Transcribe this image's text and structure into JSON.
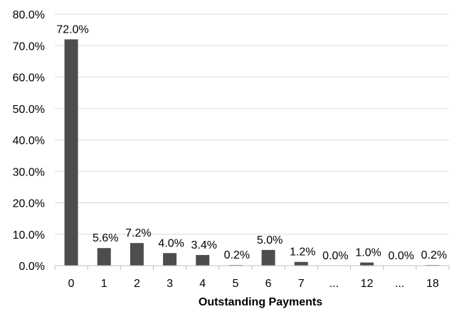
{
  "chart_data": {
    "type": "bar",
    "title": "",
    "xlabel": "Outstanding Payments",
    "ylabel": "",
    "categories": [
      "0",
      "1",
      "2",
      "3",
      "4",
      "5",
      "6",
      "7",
      "...",
      "12",
      "...",
      "18"
    ],
    "values": [
      72.0,
      5.6,
      7.2,
      4.0,
      3.4,
      0.2,
      5.0,
      1.2,
      0.0,
      1.0,
      0.0,
      0.2
    ],
    "data_labels": [
      "72.0%",
      "5.6%",
      "7.2%",
      "4.0%",
      "3.4%",
      "0.2%",
      "5.0%",
      "1.2%",
      "0.0%",
      "1.0%",
      "0.0%",
      "0.2%"
    ],
    "ylim": [
      0,
      80
    ],
    "yticks": [
      0,
      10,
      20,
      30,
      40,
      50,
      60,
      70,
      80
    ],
    "ytick_labels": [
      "0.0%",
      "10.0%",
      "20.0%",
      "30.0%",
      "40.0%",
      "50.0%",
      "60.0%",
      "70.0%",
      "80.0%"
    ],
    "grid": true,
    "legend": "none",
    "bar_color": "#4d4d4d",
    "grid_color": "#d9d9d9",
    "axis_color": "#bfbfbf"
  }
}
